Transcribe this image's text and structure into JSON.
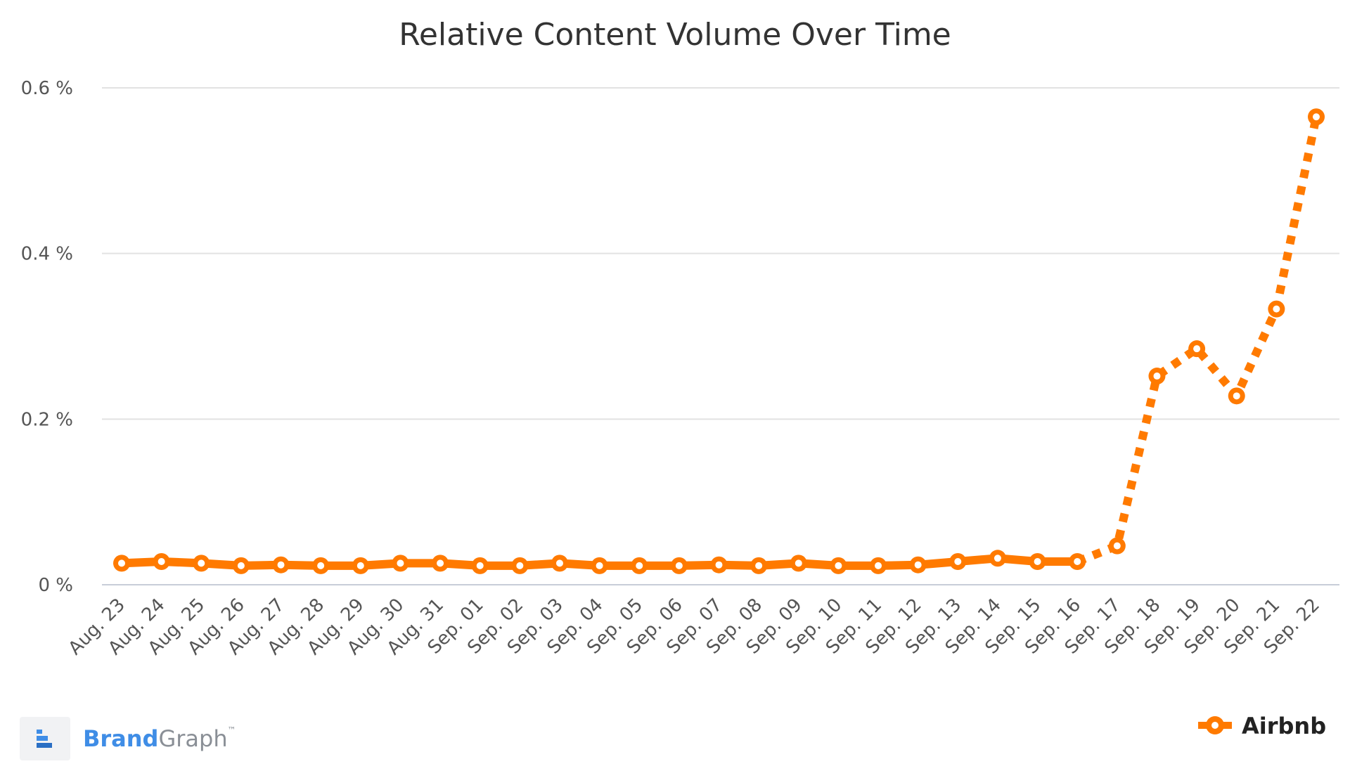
{
  "chart_data": {
    "type": "line",
    "title": "Relative Content Volume Over Time",
    "xlabel": "",
    "ylabel": "",
    "categories": [
      "Aug. 23",
      "Aug. 24",
      "Aug. 25",
      "Aug. 26",
      "Aug. 27",
      "Aug. 28",
      "Aug. 29",
      "Aug. 30",
      "Aug. 31",
      "Sep. 01",
      "Sep. 02",
      "Sep. 03",
      "Sep. 04",
      "Sep. 05",
      "Sep. 06",
      "Sep. 07",
      "Sep. 08",
      "Sep. 09",
      "Sep. 10",
      "Sep. 11",
      "Sep. 12",
      "Sep. 13",
      "Sep. 14",
      "Sep. 15",
      "Sep. 16",
      "Sep. 17",
      "Sep. 18",
      "Sep. 19",
      "Sep. 20",
      "Sep. 21",
      "Sep. 22"
    ],
    "y_ticks": [
      {
        "value": 0,
        "label": "0 %"
      },
      {
        "value": 0.2,
        "label": "0.2 %"
      },
      {
        "value": 0.4,
        "label": "0.4 %"
      },
      {
        "value": 0.6,
        "label": "0.6 %"
      }
    ],
    "ylim": [
      0,
      0.6
    ],
    "grid": true,
    "legend_position": "bottom-right",
    "series": [
      {
        "name": "Airbnb",
        "color": "#ff7a00",
        "values": [
          0.026,
          0.028,
          0.026,
          0.023,
          0.024,
          0.023,
          0.023,
          0.026,
          0.026,
          0.023,
          0.023,
          0.026,
          0.023,
          0.023,
          0.023,
          0.024,
          0.023,
          0.026,
          0.023,
          0.023,
          0.024,
          0.028,
          0.032,
          0.028,
          0.028,
          0.047,
          0.252,
          0.285,
          0.228,
          0.333,
          0.565
        ],
        "dashed_from_index": 24
      }
    ]
  },
  "brand": {
    "part1": "Brand",
    "part2": "Graph",
    "tm": "™"
  }
}
